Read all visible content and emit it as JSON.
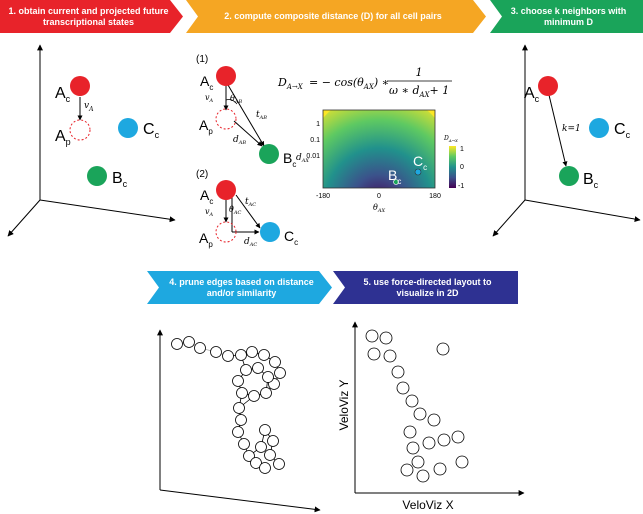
{
  "steps": [
    {
      "num": "1.",
      "text": "obtain current and projected future transcriptional states",
      "color": "#e8232a"
    },
    {
      "num": "2.",
      "text": "compute composite distance (D) for all cell pairs",
      "color": "#f5a623"
    },
    {
      "num": "3.",
      "text": "choose k neighbors with minimum D",
      "color": "#1aa45a"
    },
    {
      "num": "4.",
      "text": "prune edges based on distance and/or similarity",
      "color": "#1ea8e0"
    },
    {
      "num": "5.",
      "text": "use force-directed layout to visualize in 2D",
      "color": "#2e3192"
    }
  ],
  "cells": {
    "A": "A",
    "A_sub_c": "c",
    "A_sub_p": "p",
    "B": "B",
    "B_sub": "c",
    "C": "C",
    "C_sub": "c",
    "colors": {
      "A": "#e8232a",
      "B": "#1aa45a",
      "C": "#1ea8e0"
    }
  },
  "vectors": {
    "v": "v",
    "v_sub": "A"
  },
  "panel2": {
    "case1": "(1)",
    "case2": "(2)",
    "theta": "θ",
    "theta_AB": "AB",
    "theta_AC": "AC",
    "t": "t",
    "d": "d",
    "sub_AB": "AB",
    "sub_AC": "AC",
    "formula_lhs": "D",
    "formula_lhs_sub": "A→X",
    "formula_mid": "= − cos(θ",
    "formula_mid_sub": "AX",
    "formula_rest": ") ∗",
    "formula_num": "1",
    "formula_den_a": "ω ∗ d",
    "formula_den_sub": "AX",
    "formula_den_b": "+ 1"
  },
  "heatmap": {
    "y_ticks": [
      "1",
      "0.1",
      "0.01"
    ],
    "x_ticks": [
      "-180",
      "0",
      "180"
    ],
    "xlabel": "θ",
    "xlabel_sub": "AX",
    "ylabel": "d",
    "ylabel_sub": "AX",
    "colorbar_title": "D",
    "colorbar_title_sub": "A→X",
    "colorbar_ticks": [
      "1",
      "0",
      "-1"
    ],
    "point_B": "B",
    "point_B_sub": "c",
    "point_C": "C",
    "point_C_sub": "c"
  },
  "panel3": {
    "k_label": "k=1"
  },
  "layout2d": {
    "xlabel": "VeloViz X",
    "ylabel": "VeloViz Y"
  }
}
